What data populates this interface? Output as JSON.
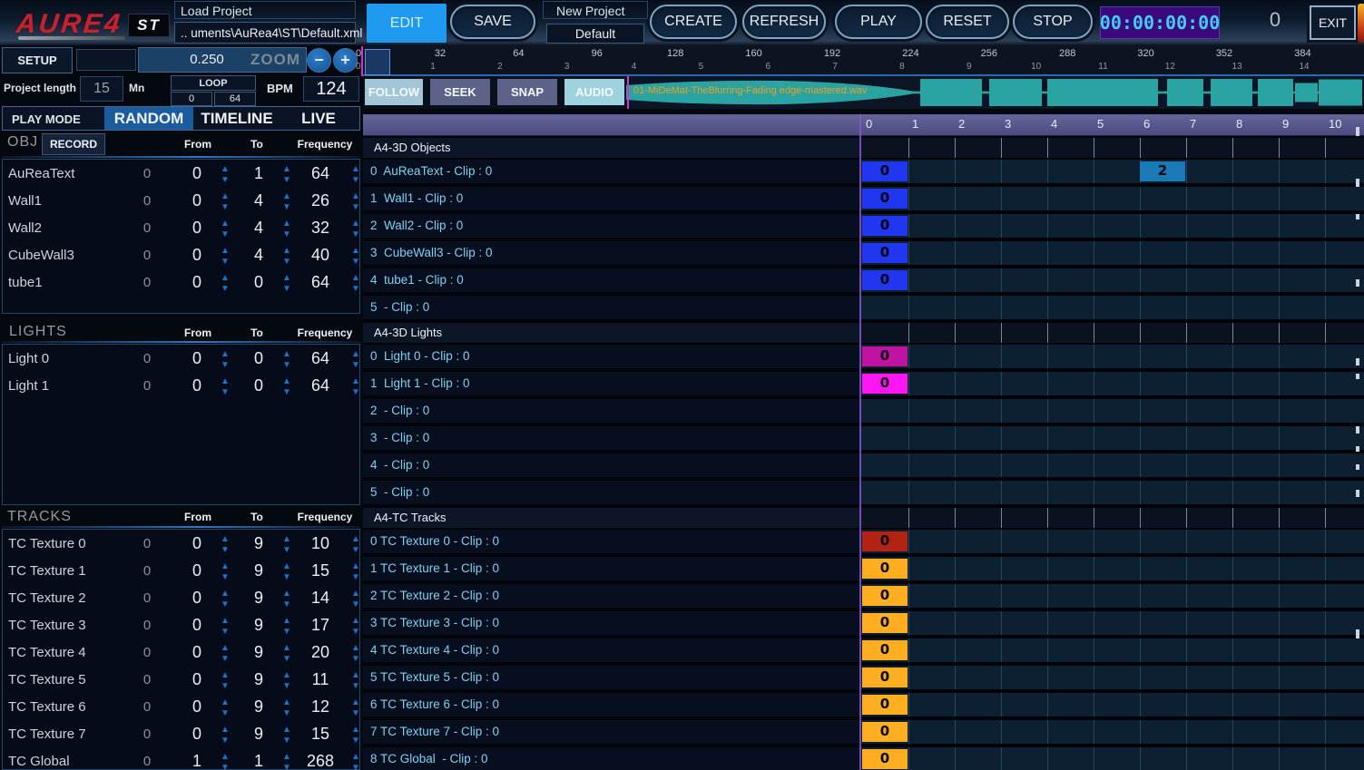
{
  "app": {
    "logo_text": "AURE4",
    "logo_badge": "ST"
  },
  "topbar": {
    "load_project_label": "Load Project",
    "project_path": ".. uments\\AuRea4\\ST\\Default.xml",
    "edit": "EDIT",
    "save": "SAVE",
    "new_project_label": "New Project",
    "new_project_value": "Default",
    "create": "CREATE",
    "refresh": "REFRESH",
    "play": "PLAY",
    "reset": "RESET",
    "stop": "STOP",
    "timecode": "00:00:00:00",
    "counter": "0",
    "exit": "EXIT"
  },
  "controls": {
    "setup": "SETUP",
    "zoom_value": "0.250",
    "zoom_label": "ZOOM",
    "project_length_label": "Project length",
    "project_length_value": "15",
    "project_length_unit": "Mn",
    "loop_label": "LOOP",
    "loop_from": "0",
    "loop_to": "64",
    "bpm_label": "BPM",
    "bpm_value": "124",
    "play_mode_label": "PLAY MODE",
    "play_modes": [
      "RANDOM",
      "TIMELINE",
      "LIVE"
    ],
    "active_play_mode": "RANDOM",
    "follow": "FOLLOW",
    "seek": "SEEK",
    "snap": "SNAP",
    "audio": "AUDIO"
  },
  "ruler": {
    "bars": [
      "32",
      "64",
      "96",
      "128",
      "160",
      "192",
      "224",
      "256",
      "288",
      "320",
      "352",
      "384"
    ],
    "minutes": [
      "1",
      "2",
      "3",
      "4",
      "5",
      "6",
      "7",
      "8",
      "9",
      "10",
      "11",
      "12",
      "13",
      "14"
    ],
    "origin_bar": "0",
    "origin_minute": "0"
  },
  "audio": {
    "filename": "01-MiDeMat-TheBlurring-Fading edge-mastered.wav"
  },
  "band": {
    "columns": [
      "0",
      "1",
      "2",
      "3",
      "4",
      "5",
      "6",
      "7",
      "8",
      "9",
      "10"
    ]
  },
  "left_panel": {
    "obj": {
      "label": "OBJ",
      "record_button": "RECORD",
      "headers": {
        "from": "From",
        "to": "To",
        "frequency": "Frequency"
      },
      "rows": [
        {
          "name": "AuReaText",
          "value": "0",
          "from": "0",
          "to": "1",
          "frequency": "64"
        },
        {
          "name": "Wall1",
          "value": "0",
          "from": "0",
          "to": "4",
          "frequency": "26"
        },
        {
          "name": "Wall2",
          "value": "0",
          "from": "0",
          "to": "4",
          "frequency": "32"
        },
        {
          "name": "CubeWall3",
          "value": "0",
          "from": "0",
          "to": "4",
          "frequency": "40"
        },
        {
          "name": "tube1",
          "value": "0",
          "from": "0",
          "to": "0",
          "frequency": "64"
        }
      ]
    },
    "lights": {
      "label": "LIGHTS",
      "headers": {
        "from": "From",
        "to": "To",
        "frequency": "Frequency"
      },
      "rows": [
        {
          "name": "Light 0",
          "value": "0",
          "from": "0",
          "to": "0",
          "frequency": "64"
        },
        {
          "name": "Light 1",
          "value": "0",
          "from": "0",
          "to": "0",
          "frequency": "64"
        }
      ]
    },
    "tracks": {
      "label": "TRACKS",
      "headers": {
        "from": "From",
        "to": "To",
        "frequency": "Frequency"
      },
      "rows": [
        {
          "name": "TC Texture 0",
          "value": "0",
          "from": "0",
          "to": "9",
          "frequency": "10"
        },
        {
          "name": "TC Texture 1",
          "value": "0",
          "from": "0",
          "to": "9",
          "frequency": "15"
        },
        {
          "name": "TC Texture 2",
          "value": "0",
          "from": "0",
          "to": "9",
          "frequency": "14"
        },
        {
          "name": "TC Texture 3",
          "value": "0",
          "from": "0",
          "to": "9",
          "frequency": "17"
        },
        {
          "name": "TC Texture 4",
          "value": "0",
          "from": "0",
          "to": "9",
          "frequency": "20"
        },
        {
          "name": "TC Texture 5",
          "value": "0",
          "from": "0",
          "to": "9",
          "frequency": "11"
        },
        {
          "name": "TC Texture 6",
          "value": "0",
          "from": "0",
          "to": "9",
          "frequency": "12"
        },
        {
          "name": "TC Texture 7",
          "value": "0",
          "from": "0",
          "to": "9",
          "frequency": "15"
        },
        {
          "name": "TC Global",
          "value": "0",
          "from": "1",
          "to": "1",
          "frequency": "268"
        }
      ]
    }
  },
  "grid": {
    "sections": [
      {
        "title": "A4-3D Objects",
        "rows": [
          {
            "label": "0  AuReaText - Clip : 0",
            "clips": [
              {
                "col": 0,
                "label": "0",
                "color": "#2137ef"
              },
              {
                "col": 6,
                "label": "2",
                "color": "#1a7ab8"
              }
            ]
          },
          {
            "label": "1  Wall1 - Clip : 0",
            "clips": [
              {
                "col": 0,
                "label": "0",
                "color": "#2137ef"
              }
            ]
          },
          {
            "label": "2  Wall2 - Clip : 0",
            "clips": [
              {
                "col": 0,
                "label": "0",
                "color": "#2137ef"
              }
            ]
          },
          {
            "label": "3  CubeWall3 - Clip : 0",
            "clips": [
              {
                "col": 0,
                "label": "0",
                "color": "#2137ef"
              }
            ]
          },
          {
            "label": "4  tube1 - Clip : 0",
            "clips": [
              {
                "col": 0,
                "label": "0",
                "color": "#2137ef"
              }
            ]
          },
          {
            "label": "5  - Clip : 0",
            "clips": []
          }
        ]
      },
      {
        "title": "A4-3D Lights",
        "rows": [
          {
            "label": "0  Light 0 - Clip : 0",
            "clips": [
              {
                "col": 0,
                "label": "0",
                "color": "#c013a2"
              }
            ]
          },
          {
            "label": "1  Light 1 - Clip : 0",
            "clips": [
              {
                "col": 0,
                "label": "0",
                "color": "#ff16f2"
              }
            ]
          },
          {
            "label": "2  - Clip : 0",
            "clips": []
          },
          {
            "label": "3  - Clip : 0",
            "clips": []
          },
          {
            "label": "4  - Clip : 0",
            "clips": []
          },
          {
            "label": "5  - Clip : 0",
            "clips": []
          }
        ]
      },
      {
        "title": "A4-TC Tracks",
        "rows": [
          {
            "label": "0 TC Texture 0 - Clip : 0",
            "clips": [
              {
                "col": 0,
                "label": "0",
                "color": "#b32314"
              }
            ]
          },
          {
            "label": "1 TC Texture 1 - Clip : 0",
            "clips": [
              {
                "col": 0,
                "label": "0",
                "color": "#ffad21"
              }
            ]
          },
          {
            "label": "2 TC Texture 2 - Clip : 0",
            "clips": [
              {
                "col": 0,
                "label": "0",
                "color": "#ffad21"
              }
            ]
          },
          {
            "label": "3 TC Texture 3 - Clip : 0",
            "clips": [
              {
                "col": 0,
                "label": "0",
                "color": "#ffad21"
              }
            ]
          },
          {
            "label": "4 TC Texture 4 - Clip : 0",
            "clips": [
              {
                "col": 0,
                "label": "0",
                "color": "#ffad21"
              }
            ]
          },
          {
            "label": "5 TC Texture 5 - Clip : 0",
            "clips": [
              {
                "col": 0,
                "label": "0",
                "color": "#ffad21"
              }
            ]
          },
          {
            "label": "6 TC Texture 6 - Clip : 0",
            "clips": [
              {
                "col": 0,
                "label": "0",
                "color": "#ffad21"
              }
            ]
          },
          {
            "label": "7 TC Texture 7 - Clip : 0",
            "clips": [
              {
                "col": 0,
                "label": "0",
                "color": "#ffad21"
              }
            ]
          },
          {
            "label": "8 TC Global  - Clip : 0",
            "clips": [
              {
                "col": 0,
                "label": "0",
                "color": "#ffad21"
              }
            ]
          }
        ]
      }
    ]
  },
  "icons": {
    "spinner_up": "▲",
    "spinner_down": "▼",
    "zoom_minus": "−",
    "zoom_plus": "+"
  },
  "colors": {
    "edit_active": "#1e9bf0",
    "mode_selected": "#1b5c9e",
    "timer_bg": "#3a0a7d",
    "timer_text": "#40cdf5",
    "waveform": "#2aa3a3",
    "filename_text": "#efa11a",
    "band_bg": "#52528a",
    "track_label_text": "#7fd2f2",
    "clip_blue": "#2137ef",
    "clip_steel": "#1a7ab8",
    "clip_magenta_dark": "#c013a2",
    "clip_magenta": "#ff16f2",
    "clip_red": "#b32314",
    "clip_orange": "#ffad21"
  }
}
